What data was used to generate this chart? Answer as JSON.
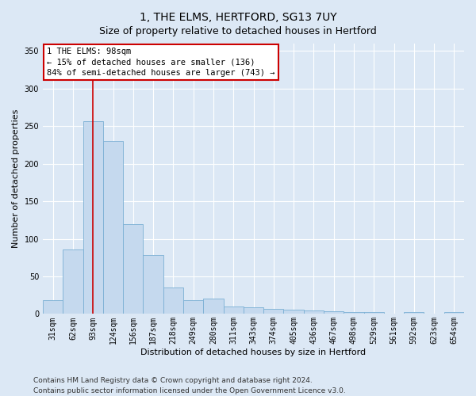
{
  "title": "1, THE ELMS, HERTFORD, SG13 7UY",
  "subtitle": "Size of property relative to detached houses in Hertford",
  "xlabel": "Distribution of detached houses by size in Hertford",
  "ylabel": "Number of detached properties",
  "categories": [
    "31sqm",
    "62sqm",
    "93sqm",
    "124sqm",
    "156sqm",
    "187sqm",
    "218sqm",
    "249sqm",
    "280sqm",
    "311sqm",
    "343sqm",
    "374sqm",
    "405sqm",
    "436sqm",
    "467sqm",
    "498sqm",
    "529sqm",
    "561sqm",
    "592sqm",
    "623sqm",
    "654sqm"
  ],
  "values": [
    18,
    86,
    257,
    230,
    120,
    78,
    35,
    18,
    20,
    10,
    9,
    7,
    6,
    5,
    4,
    3,
    3,
    0,
    3,
    0,
    3
  ],
  "bar_color": "#c5d9ee",
  "bar_edge_color": "#7aafd4",
  "vline_x_index": 2,
  "vline_color": "#cc0000",
  "annotation_text": "1 THE ELMS: 98sqm\n← 15% of detached houses are smaller (136)\n84% of semi-detached houses are larger (743) →",
  "annotation_box_facecolor": "#ffffff",
  "annotation_box_edgecolor": "#cc0000",
  "ylim": [
    0,
    360
  ],
  "yticks": [
    0,
    50,
    100,
    150,
    200,
    250,
    300,
    350
  ],
  "footer_line1": "Contains HM Land Registry data © Crown copyright and database right 2024.",
  "footer_line2": "Contains public sector information licensed under the Open Government Licence v3.0.",
  "bg_color": "#dce8f5",
  "plot_bg_color": "#dce8f5",
  "grid_color": "#ffffff",
  "title_fontsize": 10,
  "axis_label_fontsize": 8,
  "tick_fontsize": 7,
  "annotation_fontsize": 7.5,
  "footer_fontsize": 6.5
}
